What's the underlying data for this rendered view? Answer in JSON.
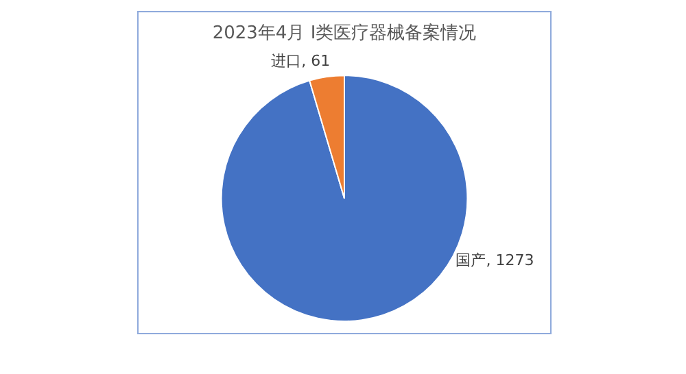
{
  "chart_data": {
    "type": "pie",
    "title": "2023年4月 Ⅰ类医疗器械备案情况",
    "categories": [
      "国产",
      "进口"
    ],
    "values": [
      1273,
      61
    ],
    "value_labels": [
      ", 1273",
      ", 61"
    ],
    "colors": [
      "#4472c4",
      "#ed7d31"
    ],
    "legend": false
  }
}
